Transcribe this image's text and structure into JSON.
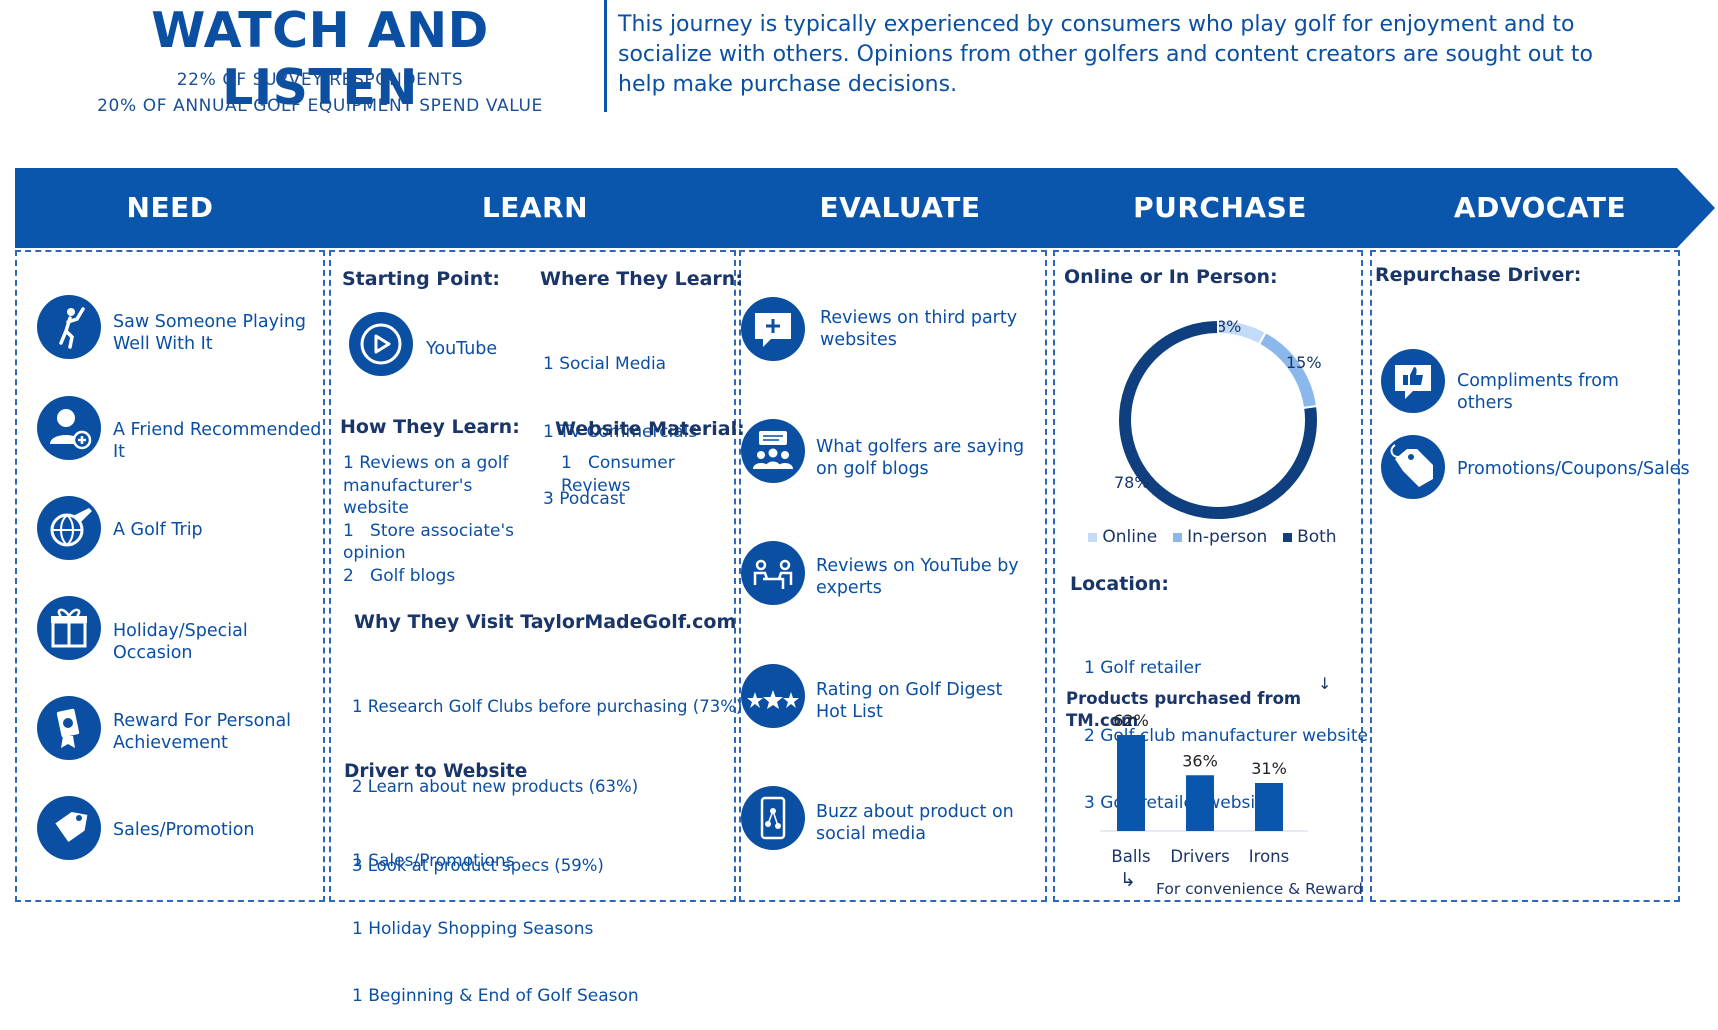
{
  "header": {
    "title": "WATCH AND LISTEN",
    "stat1": "22% OF SURVEY RESPONDENTS",
    "stat2": "20% OF ANNUAL GOLF EQUIPMENT SPEND VALUE",
    "description": "This journey is typically experienced by consumers who play golf for enjoyment and to socialize with others. Opinions from other golfers and content creators are sought out to help make purchase decisions."
  },
  "stages": [
    "NEED",
    "LEARN",
    "EVALUATE",
    "PURCHASE",
    "ADVOCATE"
  ],
  "need": {
    "items": [
      {
        "icon": "golfer-icon",
        "label": "Saw Someone Playing Well With It"
      },
      {
        "icon": "person-add-icon",
        "label": "A Friend Recommended It"
      },
      {
        "icon": "globe-plane-icon",
        "label": "A Golf Trip"
      },
      {
        "icon": "gift-icon",
        "label": "Holiday/Special Occasion"
      },
      {
        "icon": "reward-icon",
        "label": "Reward For Personal Achievement"
      },
      {
        "icon": "tag-icon",
        "label": "Sales/Promotion"
      }
    ]
  },
  "learn": {
    "starting_point_title": "Starting Point:",
    "starting_point": "YouTube",
    "where_title": "Where They Learn:",
    "where_items": [
      "1   Social Media",
      "1   TV Commercials",
      "3   Podcast"
    ],
    "how_title": "How They Learn:",
    "how_items": [
      "1 Reviews on a golf manufacturer's website",
      "1   Store associate's opinion",
      "2   Golf blogs"
    ],
    "website_title": "Website Material:",
    "website_items": [
      "1   Consumer Reviews"
    ],
    "why_title": "Why They Visit TaylorMadeGolf.com",
    "why_items": [
      "1    Research Golf Clubs before purchasing (73%)",
      "2    Learn about new products (63%)",
      "3    Look at product specs (59%)"
    ],
    "driver_title": "Driver to Website",
    "driver_items": [
      "1    Sales/Promotions",
      "1    Holiday Shopping Seasons",
      "1    Beginning & End of Golf Season"
    ]
  },
  "evaluate": {
    "items": [
      {
        "icon": "chat-plus-icon",
        "label": "Reviews on third party websites"
      },
      {
        "icon": "group-chat-icon",
        "label": "What golfers are saying on golf blogs"
      },
      {
        "icon": "interview-icon",
        "label": "Reviews on YouTube by experts"
      },
      {
        "icon": "stars-icon",
        "label": "Rating on Golf Digest Hot List"
      },
      {
        "icon": "phone-social-icon",
        "label": "Buzz about product on social media"
      }
    ]
  },
  "purchase": {
    "online_title": "Online or In Person:",
    "donut": [
      {
        "name": "Online",
        "value": 8,
        "label": "8%",
        "color": "#c3dbf6"
      },
      {
        "name": "In-person",
        "value": 15,
        "label": "15%",
        "color": "#8ab8ea"
      },
      {
        "name": "Both",
        "value": 78,
        "label": "78%",
        "color": "#103f80"
      }
    ],
    "location_title": "Location:",
    "location_items": [
      "1   Golf retailer",
      "2   Golf club manufacturer website",
      "3   Golf retailer website"
    ],
    "products_title": "Products purchased from TM.com",
    "footnote": "For convenience & Reward"
  },
  "advocate": {
    "title": "Repurchase Driver:",
    "items": [
      {
        "icon": "thumbs-up-icon",
        "label": "Compliments from others"
      },
      {
        "icon": "tag-icon",
        "label": "Promotions/Coupons/Sales"
      }
    ]
  },
  "colors": {
    "primary": "#0b4fa3",
    "dark": "#103f80",
    "light": "#c3dbf6",
    "mid": "#8ab8ea"
  },
  "chart_data": [
    {
      "type": "pie",
      "title": "Online or In Person:",
      "categories": [
        "Online",
        "In-person",
        "Both"
      ],
      "values": [
        8,
        15,
        78
      ],
      "legend": "bottom"
    },
    {
      "type": "bar",
      "title": "Products purchased from TM.com",
      "categories": [
        "Balls",
        "Drivers",
        "Irons"
      ],
      "values": [
        62,
        36,
        31
      ],
      "data_labels": [
        "62%",
        "36%",
        "31%"
      ],
      "xlabel": "",
      "ylabel": ""
    }
  ]
}
